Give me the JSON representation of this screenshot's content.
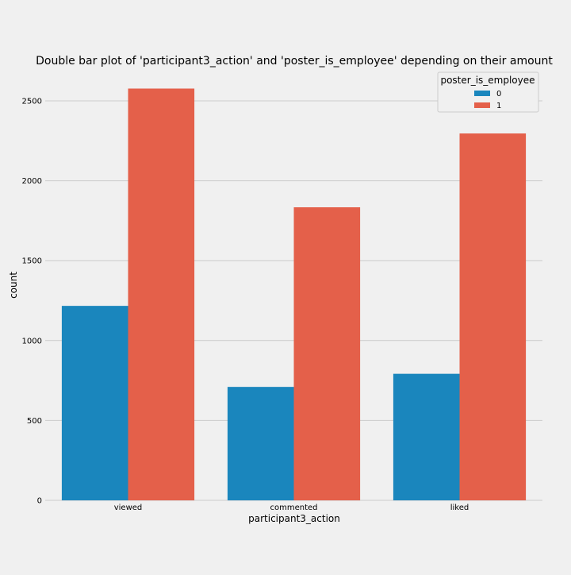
{
  "colors": {
    "background": "#f0f0f0",
    "grid": "#cbcbcb",
    "series_0": "#1a86bd",
    "series_1": "#e4604a"
  },
  "chart_data": {
    "type": "bar",
    "title": "Double bar plot of 'participant3_action' and 'poster_is_employee' depending on their amount",
    "xlabel": "participant3_action",
    "ylabel": "count",
    "categories": [
      "viewed",
      "commented",
      "liked"
    ],
    "series": [
      {
        "name": "0",
        "values": [
          1217,
          710,
          792
        ]
      },
      {
        "name": "1",
        "values": [
          2577,
          1834,
          2296
        ]
      }
    ],
    "ylim": [
      0,
      2700
    ],
    "yticks": [
      "0",
      "500",
      "1000",
      "1500",
      "2000",
      "2500"
    ],
    "grid": true,
    "legend": {
      "title": "poster_is_employee",
      "placement": "top-right"
    }
  }
}
